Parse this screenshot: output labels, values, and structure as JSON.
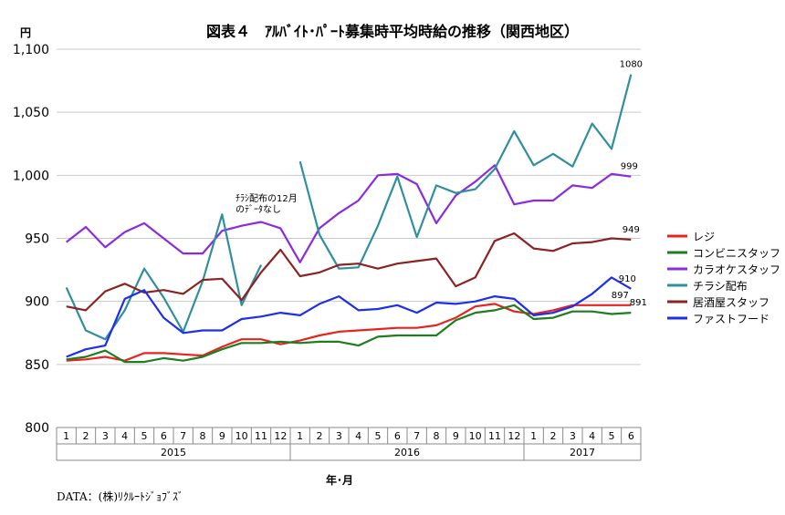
{
  "chart_data": {
    "type": "line",
    "title": "図表４　ｱﾙﾊﾞｲﾄ･ﾊﾟｰﾄ募集時平均時給の推移（関西地区）",
    "ylabel": "円",
    "xlabel": "年･月",
    "ylim": [
      800,
      1100
    ],
    "yticks": [
      800,
      850,
      900,
      950,
      1000,
      1050,
      1100
    ],
    "ytick_labels": [
      "800",
      "850",
      "900",
      "950",
      "1,000",
      "1,050",
      "1,100"
    ],
    "grid": "horizontal",
    "legend_position": "right",
    "months": [
      "1",
      "2",
      "3",
      "4",
      "5",
      "6",
      "7",
      "8",
      "9",
      "10",
      "11",
      "12",
      "1",
      "2",
      "3",
      "4",
      "5",
      "6",
      "7",
      "8",
      "9",
      "10",
      "11",
      "12",
      "1",
      "2",
      "3",
      "4",
      "5",
      "6"
    ],
    "years": [
      {
        "label": "2015",
        "start": 0,
        "end": 11
      },
      {
        "label": "2016",
        "start": 12,
        "end": 23
      },
      {
        "label": "2017",
        "start": 24,
        "end": 29
      }
    ],
    "series": [
      {
        "name": "レジ",
        "color": "#e8231f",
        "values": [
          853,
          854,
          856,
          853,
          859,
          859,
          858,
          857,
          864,
          870,
          870,
          866,
          869,
          873,
          876,
          877,
          878,
          879,
          879,
          881,
          887,
          896,
          898,
          892,
          890,
          893,
          897,
          897,
          897,
          897
        ]
      },
      {
        "name": "コンビニスタッフ",
        "color": "#1e7d1e",
        "values": [
          854,
          856,
          861,
          852,
          852,
          855,
          853,
          856,
          862,
          867,
          867,
          868,
          867,
          868,
          868,
          865,
          872,
          873,
          873,
          873,
          885,
          891,
          893,
          897,
          886,
          887,
          892,
          892,
          890,
          891
        ]
      },
      {
        "name": "カラオケスタッフ",
        "color": "#8a2be2",
        "values": [
          947,
          959,
          943,
          955,
          962,
          950,
          938,
          938,
          956,
          960,
          963,
          958,
          931,
          958,
          970,
          980,
          1000,
          1001,
          993,
          962,
          984,
          995,
          1008,
          977,
          980,
          980,
          992,
          990,
          1001,
          999
        ]
      },
      {
        "name": "チラシ配布",
        "color": "#2f8fa0",
        "values": [
          911,
          877,
          870,
          893,
          926,
          903,
          876,
          916,
          969,
          897,
          929,
          null,
          1011,
          953,
          926,
          927,
          960,
          999,
          951,
          992,
          986,
          989,
          1005,
          1035,
          1008,
          1017,
          1007,
          1041,
          1021,
          1080
        ]
      },
      {
        "name": "居酒屋スタッフ",
        "color": "#8b2323",
        "values": [
          896,
          893,
          908,
          914,
          907,
          909,
          906,
          917,
          918,
          901,
          923,
          941,
          920,
          923,
          929,
          930,
          926,
          930,
          932,
          934,
          912,
          919,
          948,
          954,
          942,
          940,
          946,
          947,
          950,
          949
        ]
      },
      {
        "name": "ファストフード",
        "color": "#1f2ee8",
        "values": [
          856,
          862,
          865,
          902,
          909,
          887,
          875,
          877,
          877,
          886,
          888,
          891,
          889,
          898,
          904,
          893,
          894,
          897,
          891,
          899,
          898,
          900,
          904,
          902,
          889,
          891,
          896,
          906,
          919,
          910
        ]
      }
    ],
    "end_labels": [
      {
        "text": "1080",
        "series": 3
      },
      {
        "text": "999",
        "series": 2
      },
      {
        "text": "949",
        "series": 4
      },
      {
        "text": "910",
        "series": 5
      },
      {
        "text": "897",
        "series": 0
      },
      {
        "text": "891",
        "series": 1
      }
    ],
    "annotation": {
      "line1": "ﾁﾗｼ配布の12月",
      "line2": "のﾃﾞｰﾀなし"
    }
  },
  "source": "DATA：(株)ﾘｸﾙｰﾄｼﾞｮﾌﾞｽﾞ"
}
